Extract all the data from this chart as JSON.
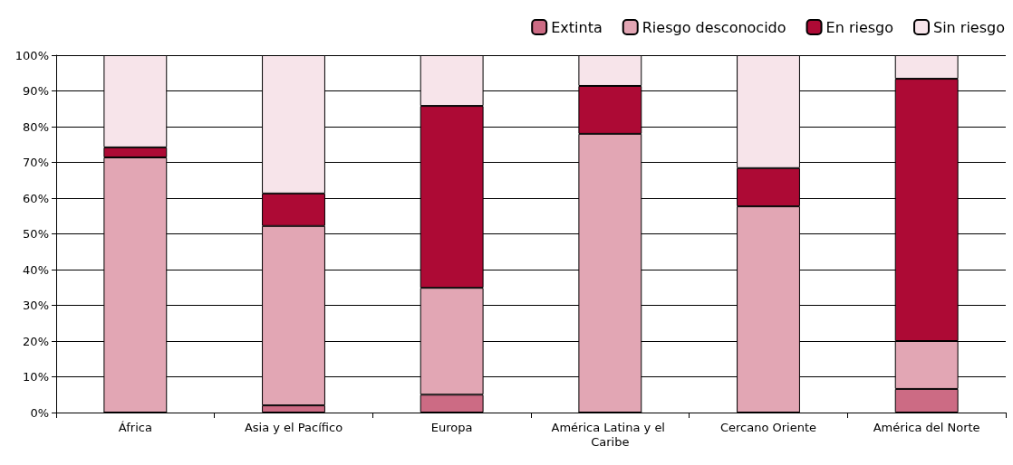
{
  "chart_data": {
    "type": "bar",
    "stacked": true,
    "categories": [
      "África",
      "Asia y el Pacífico",
      "Europa",
      "América Latina y el Caribe",
      "Cercano Oriente",
      "América del Norte"
    ],
    "series": [
      {
        "name": "Extinta",
        "color": "#cc6b84",
        "values": [
          0,
          2,
          5,
          0,
          0,
          6.6
        ]
      },
      {
        "name": "Riesgo desconocido",
        "color": "#e2a6b4",
        "values": [
          71.4,
          50.2,
          29.9,
          78,
          57.7,
          13.4
        ]
      },
      {
        "name": "En riesgo",
        "color": "#ad0a35",
        "values": [
          2.8,
          9.1,
          50.9,
          13.4,
          10.7,
          73.4
        ]
      },
      {
        "name": "Sin riesgo",
        "color": "#f7e4ea",
        "values": [
          25.8,
          38.7,
          14.2,
          8.6,
          31.6,
          6.6
        ]
      }
    ],
    "ylim": [
      0,
      100
    ],
    "yticks": [
      {
        "value": 0,
        "label": "0%"
      },
      {
        "value": 10,
        "label": "10%"
      },
      {
        "value": 20,
        "label": "20%"
      },
      {
        "value": 30,
        "label": "30%"
      },
      {
        "value": 40,
        "label": "40%"
      },
      {
        "value": 50,
        "label": "50%"
      },
      {
        "value": 60,
        "label": "60%"
      },
      {
        "value": 70,
        "label": "70%"
      },
      {
        "value": 80,
        "label": "80%"
      },
      {
        "value": 90,
        "label": "90%"
      },
      {
        "value": 100,
        "label": "100%"
      }
    ],
    "grid": "y",
    "legend": "top right"
  }
}
